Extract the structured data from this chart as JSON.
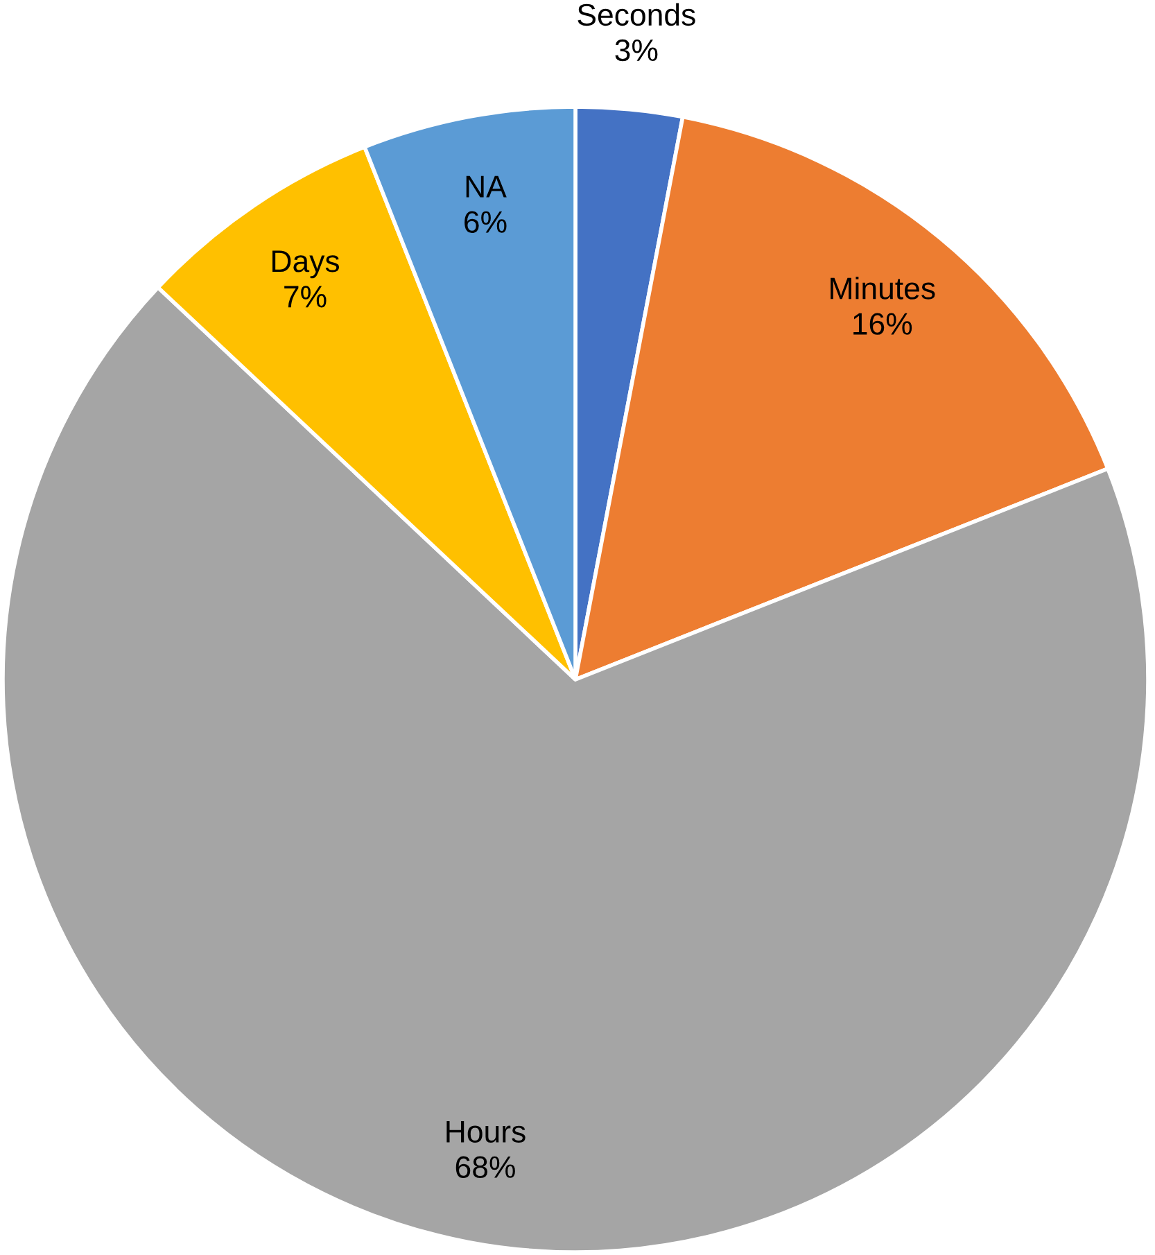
{
  "chart_data": {
    "type": "pie",
    "categories": [
      "Seconds",
      "Minutes",
      "Hours",
      "Days",
      "NA"
    ],
    "values": [
      3,
      16,
      68,
      7,
      6
    ],
    "colors": [
      "#4472c4",
      "#ed7d31",
      "#a5a5a5",
      "#ffc000",
      "#5b9bd5"
    ],
    "value_labels": [
      "3%",
      "16%",
      "68%",
      "7%",
      "6%"
    ]
  }
}
